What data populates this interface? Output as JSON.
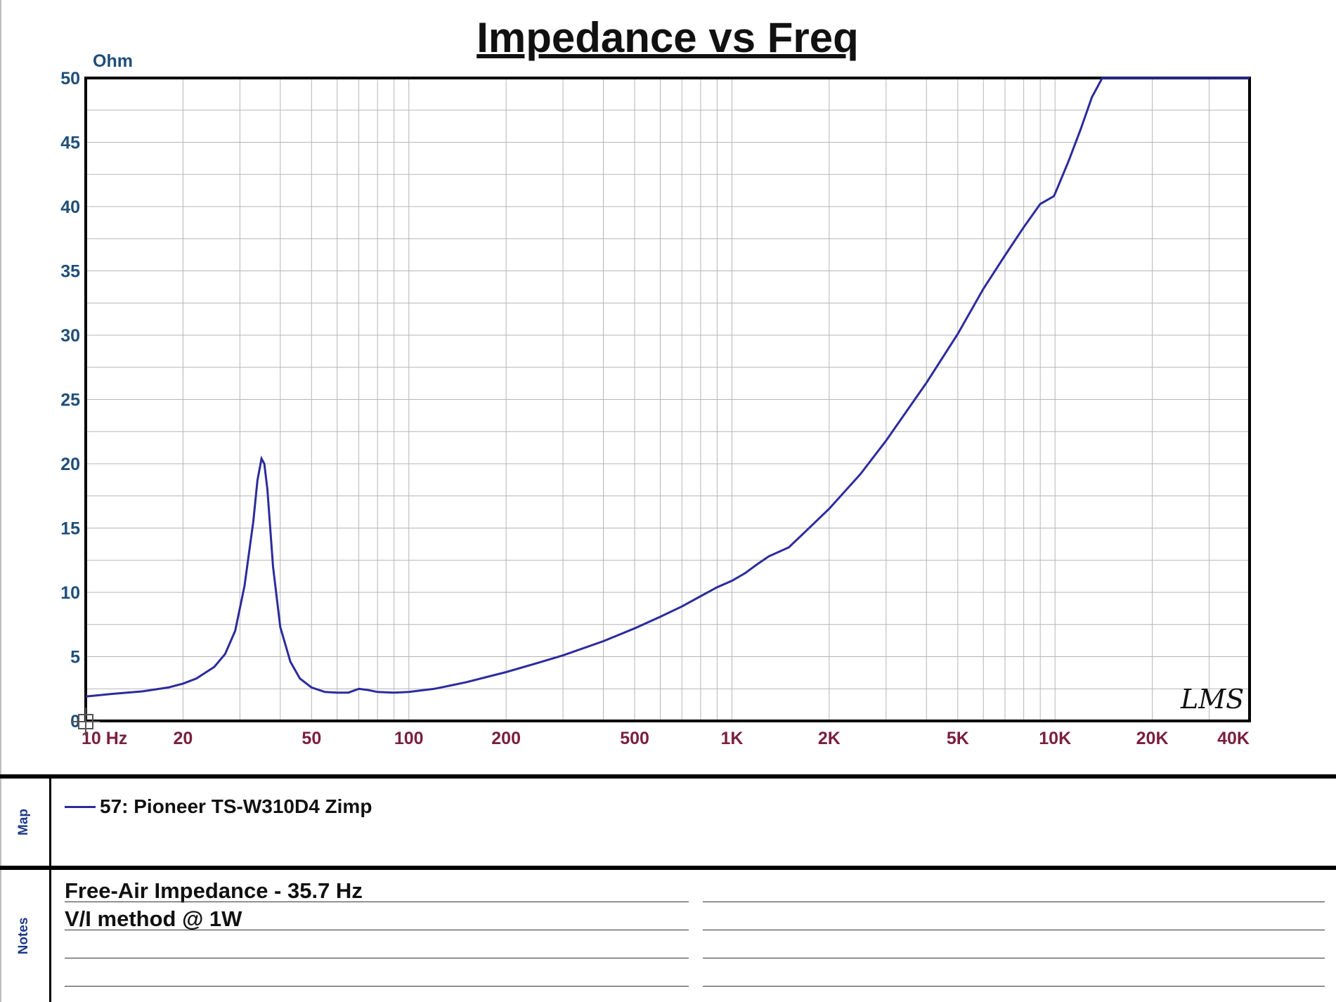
{
  "chart_data": {
    "type": "line",
    "title": "Impedance vs Freq",
    "ylabel": "Ohm",
    "xlabel": "",
    "x_scale": "log",
    "xlim": [
      10,
      40000
    ],
    "ylim": [
      0,
      50
    ],
    "grid": true,
    "x_tick_values": [
      10,
      20,
      50,
      100,
      200,
      500,
      1000,
      2000,
      5000,
      10000,
      20000,
      40000
    ],
    "x_tick_labels": [
      "10 Hz",
      "20",
      "50",
      "100",
      "200",
      "500",
      "1K",
      "2K",
      "5K",
      "10K",
      "20K",
      "40K"
    ],
    "y_tick_values": [
      0,
      5,
      10,
      15,
      20,
      25,
      30,
      35,
      40,
      45,
      50
    ],
    "y_tick_labels": [
      "0",
      "5",
      "10",
      "15",
      "20",
      "25",
      "30",
      "35",
      "40",
      "45",
      "50"
    ],
    "series": [
      {
        "name": "57: Pioneer TS-W310D4 Zimp",
        "color": "#2b2b9e",
        "x": [
          10,
          12,
          15,
          18,
          20,
          22,
          25,
          27,
          29,
          31,
          33,
          34,
          35,
          35.7,
          36.5,
          38,
          40,
          43,
          46,
          50,
          55,
          60,
          65,
          70,
          75,
          80,
          90,
          100,
          120,
          150,
          200,
          250,
          300,
          400,
          500,
          600,
          700,
          800,
          900,
          1000,
          1100,
          1200,
          1300,
          1500,
          1700,
          2000,
          2500,
          3000,
          4000,
          5000,
          6000,
          7000,
          8000,
          9000,
          9900,
          10000,
          11000,
          12000,
          13000,
          14000,
          20000,
          30000,
          40000
        ],
        "y": [
          1.9,
          2.1,
          2.3,
          2.6,
          2.9,
          3.3,
          4.2,
          5.2,
          7.0,
          10.5,
          15.5,
          18.7,
          20.4,
          20.0,
          18.0,
          12.0,
          7.3,
          4.6,
          3.3,
          2.6,
          2.25,
          2.2,
          2.2,
          2.5,
          2.4,
          2.25,
          2.2,
          2.25,
          2.5,
          3.0,
          3.8,
          4.5,
          5.1,
          6.2,
          7.2,
          8.1,
          8.9,
          9.7,
          10.4,
          10.9,
          11.5,
          12.2,
          12.8,
          13.5,
          14.8,
          16.5,
          19.2,
          21.8,
          26.3,
          30.1,
          33.6,
          36.2,
          38.4,
          40.2,
          40.8,
          41.0,
          43.5,
          46.0,
          48.5,
          50.0,
          50.0,
          50.0,
          50.0
        ]
      }
    ]
  },
  "watermark_text": "LMS",
  "map_panel": {
    "label": "Map",
    "legend_text": "57: Pioneer TS-W310D4 Zimp"
  },
  "notes_panel": {
    "label": "Notes",
    "line1": "Free-Air Impedance - 35.7 Hz",
    "line2": "V/I method @ 1W"
  }
}
